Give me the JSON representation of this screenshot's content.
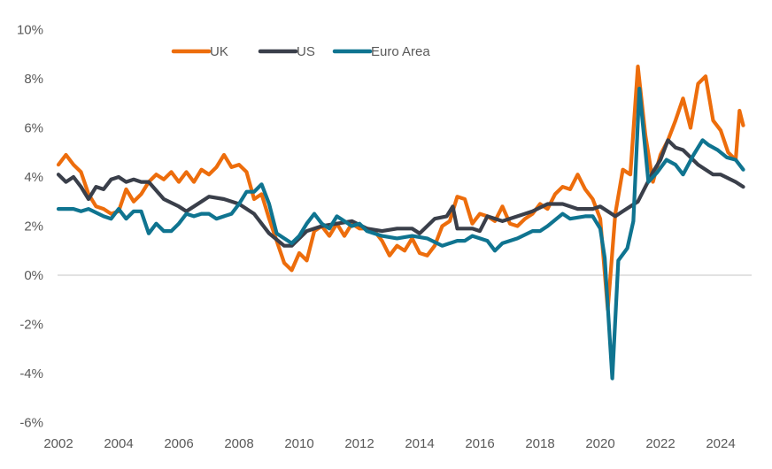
{
  "chart_data": {
    "type": "line",
    "title": "",
    "xlabel": "",
    "ylabel": "",
    "ylim": [
      -6,
      10
    ],
    "xlim": [
      2002,
      2025
    ],
    "y_ticks": [
      -6,
      -4,
      -2,
      0,
      2,
      4,
      6,
      8,
      10
    ],
    "y_tick_labels": [
      "-6%",
      "-4%",
      "-2%",
      "0%",
      "2%",
      "4%",
      "6%",
      "8%",
      "10%"
    ],
    "x_ticks": [
      2002,
      2004,
      2006,
      2008,
      2010,
      2012,
      2014,
      2016,
      2018,
      2020,
      2022,
      2024
    ],
    "x_tick_labels": [
      "2002",
      "2004",
      "2006",
      "2008",
      "2010",
      "2012",
      "2014",
      "2016",
      "2018",
      "2020",
      "2022",
      "2024"
    ],
    "grid": false,
    "zero_line": true,
    "legend": {
      "placement": "top-left",
      "orientation": "horizontal"
    },
    "series": [
      {
        "name": "UK",
        "color": "#ED6D0C",
        "points": [
          [
            2002.0,
            4.5
          ],
          [
            2002.25,
            4.9
          ],
          [
            2002.5,
            4.5
          ],
          [
            2002.75,
            4.2
          ],
          [
            2003.0,
            3.3
          ],
          [
            2003.25,
            2.8
          ],
          [
            2003.5,
            2.7
          ],
          [
            2003.75,
            2.5
          ],
          [
            2004.0,
            2.6
          ],
          [
            2004.25,
            3.5
          ],
          [
            2004.5,
            3.0
          ],
          [
            2004.75,
            3.3
          ],
          [
            2005.0,
            3.8
          ],
          [
            2005.25,
            4.1
          ],
          [
            2005.5,
            3.9
          ],
          [
            2005.75,
            4.2
          ],
          [
            2006.0,
            3.8
          ],
          [
            2006.25,
            4.2
          ],
          [
            2006.5,
            3.8
          ],
          [
            2006.75,
            4.3
          ],
          [
            2007.0,
            4.1
          ],
          [
            2007.25,
            4.4
          ],
          [
            2007.5,
            4.9
          ],
          [
            2007.75,
            4.4
          ],
          [
            2008.0,
            4.5
          ],
          [
            2008.25,
            4.2
          ],
          [
            2008.5,
            3.1
          ],
          [
            2008.75,
            3.3
          ],
          [
            2009.0,
            2.3
          ],
          [
            2009.25,
            1.4
          ],
          [
            2009.5,
            0.5
          ],
          [
            2009.75,
            0.2
          ],
          [
            2010.0,
            0.9
          ],
          [
            2010.25,
            0.6
          ],
          [
            2010.5,
            1.8
          ],
          [
            2010.75,
            2.0
          ],
          [
            2011.0,
            1.6
          ],
          [
            2011.25,
            2.1
          ],
          [
            2011.5,
            1.6
          ],
          [
            2011.75,
            2.1
          ],
          [
            2012.0,
            1.9
          ],
          [
            2012.25,
            1.9
          ],
          [
            2012.5,
            1.8
          ],
          [
            2012.75,
            1.4
          ],
          [
            2013.0,
            0.8
          ],
          [
            2013.25,
            1.2
          ],
          [
            2013.5,
            1.0
          ],
          [
            2013.75,
            1.5
          ],
          [
            2014.0,
            0.9
          ],
          [
            2014.25,
            0.8
          ],
          [
            2014.5,
            1.2
          ],
          [
            2014.75,
            2.0
          ],
          [
            2015.0,
            2.2
          ],
          [
            2015.25,
            3.2
          ],
          [
            2015.5,
            3.1
          ],
          [
            2015.75,
            2.1
          ],
          [
            2016.0,
            2.5
          ],
          [
            2016.25,
            2.4
          ],
          [
            2016.5,
            2.2
          ],
          [
            2016.75,
            2.8
          ],
          [
            2017.0,
            2.1
          ],
          [
            2017.25,
            2.0
          ],
          [
            2017.5,
            2.3
          ],
          [
            2017.75,
            2.5
          ],
          [
            2018.0,
            2.9
          ],
          [
            2018.25,
            2.7
          ],
          [
            2018.5,
            3.3
          ],
          [
            2018.75,
            3.6
          ],
          [
            2019.0,
            3.5
          ],
          [
            2019.25,
            4.1
          ],
          [
            2019.5,
            3.5
          ],
          [
            2019.75,
            3.1
          ],
          [
            2020.0,
            2.3
          ],
          [
            2020.25,
            -1.4
          ],
          [
            2020.5,
            2.5
          ],
          [
            2020.75,
            4.3
          ],
          [
            2021.0,
            4.1
          ],
          [
            2021.25,
            8.5
          ],
          [
            2021.5,
            5.7
          ],
          [
            2021.75,
            3.8
          ],
          [
            2022.0,
            4.9
          ],
          [
            2022.25,
            5.5
          ],
          [
            2022.5,
            6.3
          ],
          [
            2022.75,
            7.2
          ],
          [
            2023.0,
            6.0
          ],
          [
            2023.25,
            7.8
          ],
          [
            2023.5,
            8.1
          ],
          [
            2023.75,
            6.3
          ],
          [
            2024.0,
            5.9
          ],
          [
            2024.25,
            5.0
          ],
          [
            2024.5,
            4.7
          ],
          [
            2024.625,
            6.7
          ],
          [
            2024.75,
            6.1
          ]
        ]
      },
      {
        "name": "US",
        "color": "#3A3F4A",
        "points": [
          [
            2002.0,
            4.1
          ],
          [
            2002.25,
            3.8
          ],
          [
            2002.5,
            4.0
          ],
          [
            2002.75,
            3.6
          ],
          [
            2003.0,
            3.1
          ],
          [
            2003.25,
            3.6
          ],
          [
            2003.5,
            3.5
          ],
          [
            2003.75,
            3.9
          ],
          [
            2004.0,
            4.0
          ],
          [
            2004.25,
            3.8
          ],
          [
            2004.5,
            3.9
          ],
          [
            2004.75,
            3.8
          ],
          [
            2005.0,
            3.8
          ],
          [
            2005.5,
            3.1
          ],
          [
            2006.0,
            2.8
          ],
          [
            2006.25,
            2.6
          ],
          [
            2006.75,
            3.0
          ],
          [
            2007.0,
            3.2
          ],
          [
            2007.5,
            3.1
          ],
          [
            2008.0,
            2.9
          ],
          [
            2008.5,
            2.5
          ],
          [
            2009.0,
            1.7
          ],
          [
            2009.5,
            1.2
          ],
          [
            2009.75,
            1.2
          ],
          [
            2010.25,
            1.8
          ],
          [
            2010.75,
            2.0
          ],
          [
            2011.25,
            2.1
          ],
          [
            2011.75,
            2.2
          ],
          [
            2012.25,
            1.9
          ],
          [
            2012.75,
            1.8
          ],
          [
            2013.25,
            1.9
          ],
          [
            2013.75,
            1.9
          ],
          [
            2014.0,
            1.7
          ],
          [
            2014.5,
            2.3
          ],
          [
            2014.9,
            2.4
          ],
          [
            2015.1,
            2.8
          ],
          [
            2015.25,
            1.9
          ],
          [
            2015.75,
            1.9
          ],
          [
            2016.0,
            1.8
          ],
          [
            2016.25,
            2.4
          ],
          [
            2016.75,
            2.2
          ],
          [
            2017.25,
            2.4
          ],
          [
            2017.75,
            2.6
          ],
          [
            2018.25,
            2.9
          ],
          [
            2018.75,
            2.9
          ],
          [
            2019.25,
            2.7
          ],
          [
            2019.75,
            2.7
          ],
          [
            2020.0,
            2.8
          ],
          [
            2020.25,
            2.6
          ],
          [
            2020.5,
            2.4
          ],
          [
            2020.75,
            2.6
          ],
          [
            2021.25,
            3.0
          ],
          [
            2021.75,
            4.2
          ],
          [
            2022.0,
            4.7
          ],
          [
            2022.25,
            5.5
          ],
          [
            2022.5,
            5.2
          ],
          [
            2022.75,
            5.1
          ],
          [
            2023.25,
            4.5
          ],
          [
            2023.75,
            4.1
          ],
          [
            2024.0,
            4.1
          ],
          [
            2024.5,
            3.8
          ],
          [
            2024.75,
            3.6
          ]
        ]
      },
      {
        "name": "Euro Area",
        "color": "#0F7490",
        "points": [
          [
            2002.0,
            2.7
          ],
          [
            2002.5,
            2.7
          ],
          [
            2002.75,
            2.6
          ],
          [
            2003.0,
            2.7
          ],
          [
            2003.5,
            2.4
          ],
          [
            2003.75,
            2.3
          ],
          [
            2004.0,
            2.7
          ],
          [
            2004.25,
            2.3
          ],
          [
            2004.5,
            2.6
          ],
          [
            2004.75,
            2.6
          ],
          [
            2005.0,
            1.7
          ],
          [
            2005.25,
            2.1
          ],
          [
            2005.5,
            1.8
          ],
          [
            2005.75,
            1.8
          ],
          [
            2006.0,
            2.1
          ],
          [
            2006.25,
            2.5
          ],
          [
            2006.5,
            2.4
          ],
          [
            2006.75,
            2.5
          ],
          [
            2007.0,
            2.5
          ],
          [
            2007.25,
            2.3
          ],
          [
            2007.75,
            2.5
          ],
          [
            2008.0,
            2.9
          ],
          [
            2008.25,
            3.4
          ],
          [
            2008.5,
            3.4
          ],
          [
            2008.75,
            3.7
          ],
          [
            2009.0,
            2.9
          ],
          [
            2009.25,
            1.7
          ],
          [
            2009.5,
            1.5
          ],
          [
            2009.75,
            1.3
          ],
          [
            2010.0,
            1.6
          ],
          [
            2010.25,
            2.1
          ],
          [
            2010.5,
            2.5
          ],
          [
            2010.75,
            2.1
          ],
          [
            2011.0,
            1.9
          ],
          [
            2011.25,
            2.4
          ],
          [
            2011.5,
            2.2
          ],
          [
            2011.75,
            2.0
          ],
          [
            2012.0,
            2.1
          ],
          [
            2012.25,
            1.8
          ],
          [
            2012.75,
            1.6
          ],
          [
            2013.25,
            1.5
          ],
          [
            2013.75,
            1.6
          ],
          [
            2014.25,
            1.5
          ],
          [
            2014.75,
            1.2
          ],
          [
            2015.25,
            1.4
          ],
          [
            2015.5,
            1.4
          ],
          [
            2015.75,
            1.6
          ],
          [
            2016.25,
            1.4
          ],
          [
            2016.5,
            1.0
          ],
          [
            2016.75,
            1.3
          ],
          [
            2017.25,
            1.5
          ],
          [
            2017.75,
            1.8
          ],
          [
            2018.0,
            1.8
          ],
          [
            2018.25,
            2.0
          ],
          [
            2018.75,
            2.5
          ],
          [
            2019.0,
            2.3
          ],
          [
            2019.5,
            2.4
          ],
          [
            2019.75,
            2.4
          ],
          [
            2020.0,
            1.9
          ],
          [
            2020.15,
            0.7
          ],
          [
            2020.4,
            -4.2
          ],
          [
            2020.6,
            0.6
          ],
          [
            2020.9,
            1.1
          ],
          [
            2021.1,
            2.2
          ],
          [
            2021.3,
            7.6
          ],
          [
            2021.6,
            3.8
          ],
          [
            2021.9,
            4.2
          ],
          [
            2022.2,
            4.7
          ],
          [
            2022.5,
            4.5
          ],
          [
            2022.75,
            4.1
          ],
          [
            2023.1,
            4.9
          ],
          [
            2023.4,
            5.5
          ],
          [
            2023.6,
            5.3
          ],
          [
            2023.9,
            5.1
          ],
          [
            2024.2,
            4.8
          ],
          [
            2024.5,
            4.7
          ],
          [
            2024.75,
            4.3
          ]
        ]
      }
    ]
  }
}
